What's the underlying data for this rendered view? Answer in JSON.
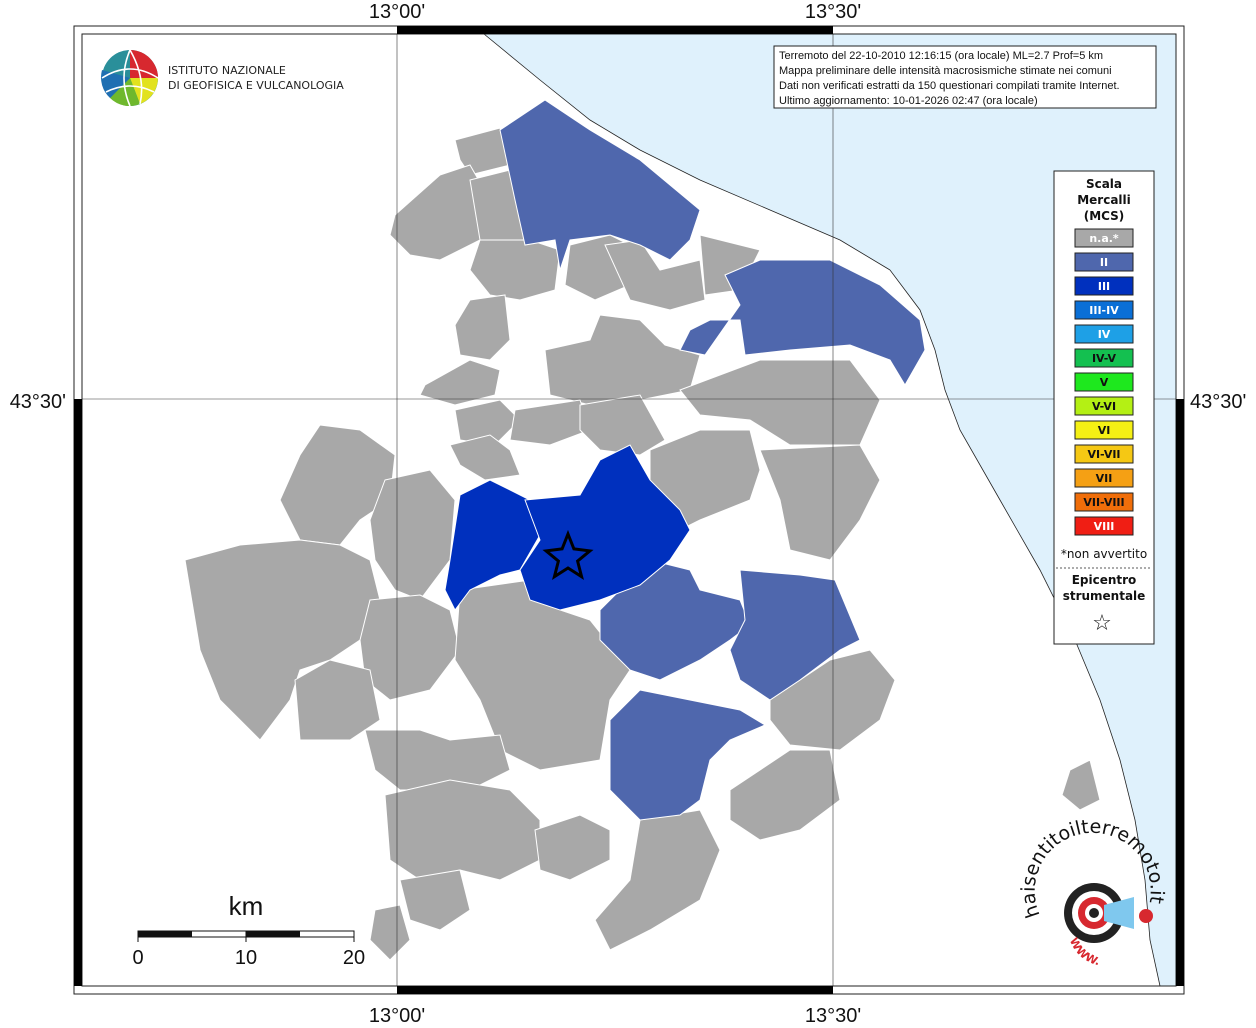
{
  "info_box": {
    "line1": "Terremoto del 22-10-2010 12:16:15 (ora locale) ML=2.7 Prof=5 km",
    "line2": "Mappa preliminare delle intensità macrosismiche stimate nei comuni",
    "line3": "Dati non verificati estratti da 150 questionari compilati tramite Internet.",
    "line4": "Ultimo aggiornamento: 10-01-2026 02:47 (ora locale)"
  },
  "logo": {
    "line1": "ISTITUTO NAZIONALE",
    "line2": "DI GEOFISICA E VULCANOLOGIA"
  },
  "coords": {
    "lon_left": "13°00'",
    "lon_right": "13°30'",
    "lat": "43°30'"
  },
  "legend": {
    "title1": "Scala",
    "title2": "Mercalli",
    "title3": "(MCS)",
    "items": [
      {
        "label": "n.a.*",
        "color": "#a8a8a8",
        "text_color": "#ffffff"
      },
      {
        "label": "II",
        "color": "#4f67ad",
        "text_color": "#ffffff"
      },
      {
        "label": "III",
        "color": "#0030be",
        "text_color": "#ffffff"
      },
      {
        "label": "III-IV",
        "color": "#0a6fd6",
        "text_color": "#ffffff"
      },
      {
        "label": "IV",
        "color": "#1ea0e6",
        "text_color": "#ffffff"
      },
      {
        "label": "IV-V",
        "color": "#14c050",
        "text_color": "#111111"
      },
      {
        "label": "V",
        "color": "#1ee81e",
        "text_color": "#111111"
      },
      {
        "label": "V-VI",
        "color": "#b4f014",
        "text_color": "#111111"
      },
      {
        "label": "VI",
        "color": "#f5f014",
        "text_color": "#111111"
      },
      {
        "label": "VI-VII",
        "color": "#f5c814",
        "text_color": "#111111"
      },
      {
        "label": "VII",
        "color": "#f5a014",
        "text_color": "#111111"
      },
      {
        "label": "VII-VIII",
        "color": "#f06e0a",
        "text_color": "#111111"
      },
      {
        "label": "VIII",
        "color": "#f01e14",
        "text_color": "#ffffff"
      }
    ],
    "note": "*non avvertito",
    "epi1": "Epicentro",
    "epi2": "strumentale",
    "epi_symbol": "☆"
  },
  "scalebar": {
    "unit": "km",
    "ticks": [
      "0",
      "10",
      "20"
    ]
  },
  "watermark": {
    "text": "haisentitoilterremoto.it",
    "www": "WWW."
  },
  "colors": {
    "sea": "#dff1fc",
    "not_felt": "#a8a8a8",
    "grade_II": "#4f67ad",
    "grade_III": "#0030be"
  }
}
